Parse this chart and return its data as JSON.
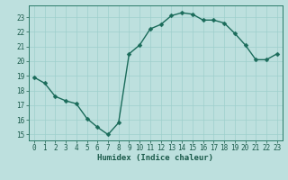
{
  "x": [
    0,
    1,
    2,
    3,
    4,
    5,
    6,
    7,
    8,
    9,
    10,
    11,
    12,
    13,
    14,
    15,
    16,
    17,
    18,
    19,
    20,
    21,
    22,
    23
  ],
  "y": [
    18.9,
    18.5,
    17.6,
    17.3,
    17.1,
    16.1,
    15.5,
    15.0,
    15.8,
    20.5,
    21.1,
    22.2,
    22.5,
    23.1,
    23.3,
    23.2,
    22.8,
    22.8,
    22.6,
    21.9,
    21.1,
    20.1,
    20.1,
    20.5
  ],
  "line_color": "#1a6b5a",
  "bg_color": "#bde0de",
  "grid_color": "#9ecfcc",
  "xlabel": "Humidex (Indice chaleur)",
  "ylim": [
    14.6,
    23.8
  ],
  "xlim": [
    -0.5,
    23.5
  ],
  "yticks": [
    15,
    16,
    17,
    18,
    19,
    20,
    21,
    22,
    23
  ],
  "xticks": [
    0,
    1,
    2,
    3,
    4,
    5,
    6,
    7,
    8,
    9,
    10,
    11,
    12,
    13,
    14,
    15,
    16,
    17,
    18,
    19,
    20,
    21,
    22,
    23
  ],
  "axis_color": "#2a7a68",
  "tick_color": "#1a5a4a",
  "label_fontsize": 6.5,
  "tick_fontsize": 5.5,
  "marker_size": 2.5,
  "line_width": 1.0
}
